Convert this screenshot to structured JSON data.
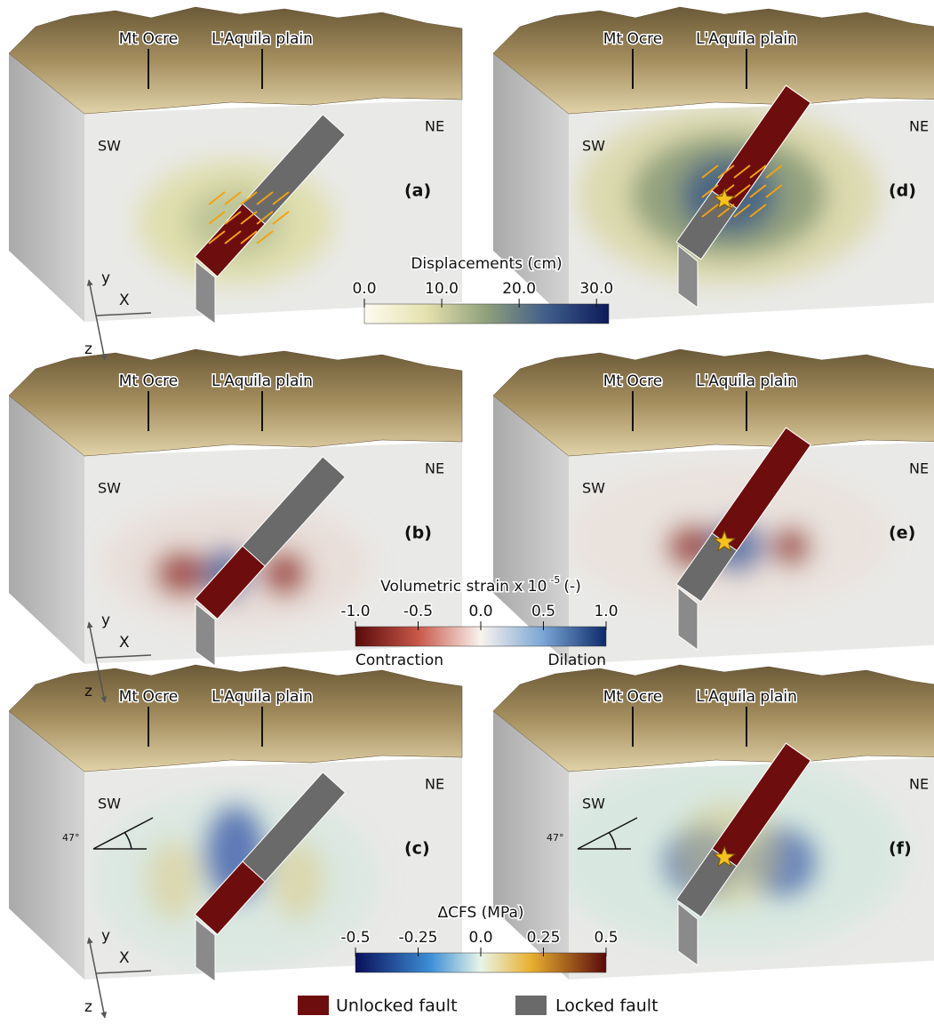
{
  "panels": [
    {
      "label": "(a)",
      "landmarks": [
        "Mt Ocre",
        "L'Aquila plain"
      ],
      "sides": [
        "SW",
        "NE"
      ]
    },
    {
      "label": "(d)",
      "landmarks": [
        "Mt Ocre",
        "L'Aquila plain"
      ],
      "sides": [
        "SW",
        "NE"
      ]
    },
    {
      "label": "(b)",
      "landmarks": [
        "Mt Ocre",
        "L'Aquila plain"
      ],
      "sides": [
        "SW",
        "NE"
      ]
    },
    {
      "label": "(e)",
      "landmarks": [
        "Mt Ocre",
        "L'Aquila plain"
      ],
      "sides": [
        "SW",
        "NE"
      ]
    },
    {
      "label": "(c)",
      "landmarks": [
        "Mt Ocre",
        "L'Aquila plain"
      ],
      "sides": [
        "SW",
        "NE"
      ],
      "angle": "47°"
    },
    {
      "label": "(f)",
      "landmarks": [
        "Mt Ocre",
        "L'Aquila plain"
      ],
      "sides": [
        "SW",
        "NE"
      ],
      "angle": "47°"
    }
  ],
  "axes": [
    {
      "y": "y",
      "x": "X",
      "z": "z"
    },
    {
      "y": "y",
      "x": "X",
      "z": "z"
    },
    {
      "y": "y",
      "x": "X",
      "z": "z"
    }
  ],
  "colorbars": [
    {
      "title": "Displacements (cm)",
      "ticks": [
        "0.0",
        "10.0",
        "20.0",
        "30.0"
      ]
    },
    {
      "title": "Volumetric strain x 10",
      "superscript": "-5",
      "unit": "(-)",
      "ticks": [
        "-1.0",
        "-0.5",
        "0.0",
        "0.5",
        "1.0"
      ],
      "ends": [
        "Contraction",
        "Dilation"
      ]
    },
    {
      "title": "ΔCFS (MPa)",
      "ticks": [
        "-0.5",
        "-0.25",
        "0.0",
        "0.25",
        "0.5"
      ]
    }
  ],
  "legend": [
    "Unlocked fault",
    "Locked fault"
  ]
}
